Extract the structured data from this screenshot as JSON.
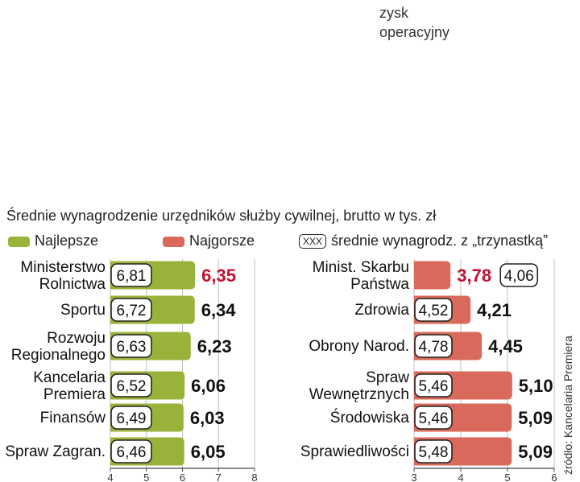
{
  "header": {
    "note_line1": "zysk",
    "note_line2": "operacyjny"
  },
  "title": "Średnie wynagrodzenie urzędników służby cywilnej, brutto w tys. zł",
  "legend": {
    "best": "Najlepsze",
    "worst": "Najgorsze",
    "box_sample": "XXX",
    "box_desc": "średnie wynagrodz. z „trzynastką”"
  },
  "source": "źródło: Kancelaria Premiera",
  "colors": {
    "best": "#99b33a",
    "worst": "#d9695a",
    "highlight_value": "#c2102f",
    "axis": "#444444"
  },
  "chart_data": [
    {
      "type": "bar",
      "orientation": "horizontal",
      "name": "Najlepsze",
      "categories": [
        [
          "Ministerstwo",
          "Rolnictwa"
        ],
        [
          "Sportu"
        ],
        [
          "Rozwoju",
          "Regionalnego"
        ],
        [
          "Kancelaria",
          "Premiera"
        ],
        [
          "Finansów"
        ],
        [
          "Spraw Zagran."
        ]
      ],
      "values": [
        "6,35",
        "6,34",
        "6,23",
        "6,06",
        "6,03",
        "6,05"
      ],
      "numeric_values": [
        6.35,
        6.34,
        6.23,
        6.06,
        6.03,
        6.05
      ],
      "with_13th": [
        "6,81",
        "6,72",
        "6,63",
        "6,52",
        "6,49",
        "6,46"
      ],
      "highlight_index": 0,
      "xlim": [
        4,
        8
      ],
      "ticks": [
        "4",
        "5",
        "6",
        "7",
        "8"
      ]
    },
    {
      "type": "bar",
      "orientation": "horizontal",
      "name": "Najgorsze",
      "categories": [
        [
          "Minist. Skarbu",
          "Państwa"
        ],
        [
          "Zdrowia"
        ],
        [
          "Obrony Narod."
        ],
        [
          "Spraw",
          "Wewnętrznych"
        ],
        [
          "Środowiska"
        ],
        [
          "Sprawiedliwości"
        ]
      ],
      "values": [
        "3,78",
        "4,21",
        "4,45",
        "5,10",
        "5,09",
        "5,09"
      ],
      "numeric_values": [
        3.78,
        4.21,
        4.45,
        5.1,
        5.09,
        5.09
      ],
      "with_13th": [
        "4,06",
        "4,52",
        "4,78",
        "5,46",
        "5,46",
        "5,48"
      ],
      "highlight_index": 0,
      "xlim": [
        3,
        6
      ],
      "ticks": [
        "3",
        "4",
        "5",
        "6"
      ]
    }
  ]
}
